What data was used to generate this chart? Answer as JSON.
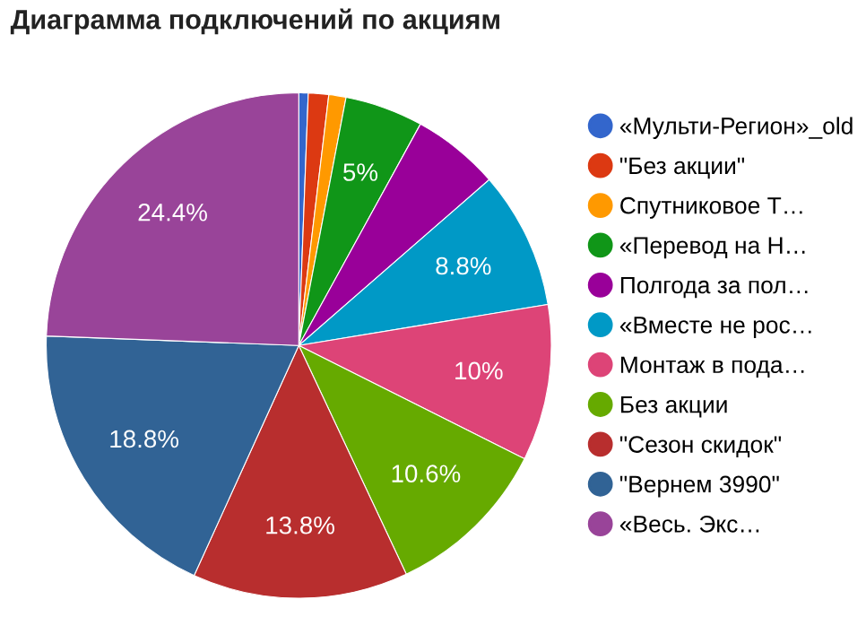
{
  "chart_data": {
    "type": "pie",
    "title": "Диаграмма подключений по акциям",
    "categories": [
      "«Мульти-Регион»_old",
      "\"Без акции\"",
      "Спутниковое Т…",
      "«Перевод на Н…",
      "Полгода за пол…",
      "«Вместе не рос…",
      "Монтаж в пода…",
      "Без акции",
      "\"Сезон скидок\"",
      "\"Вернем 3990\"",
      "«Весь. Экс…"
    ],
    "values": [
      0.6,
      1.3,
      1.1,
      5,
      5.6,
      8.8,
      10,
      10.6,
      13.8,
      18.8,
      24.4
    ],
    "value_labels": [
      null,
      null,
      null,
      "5%",
      null,
      "8.8%",
      "10%",
      "10.6%",
      "13.8%",
      "18.8%",
      "24.4%"
    ],
    "colors": [
      "#3366cc",
      "#dc3912",
      "#ff9900",
      "#109618",
      "#990099",
      "#0099c6",
      "#dd4477",
      "#66aa00",
      "#b82e2e",
      "#316395",
      "#994499"
    ],
    "legend": "right"
  }
}
